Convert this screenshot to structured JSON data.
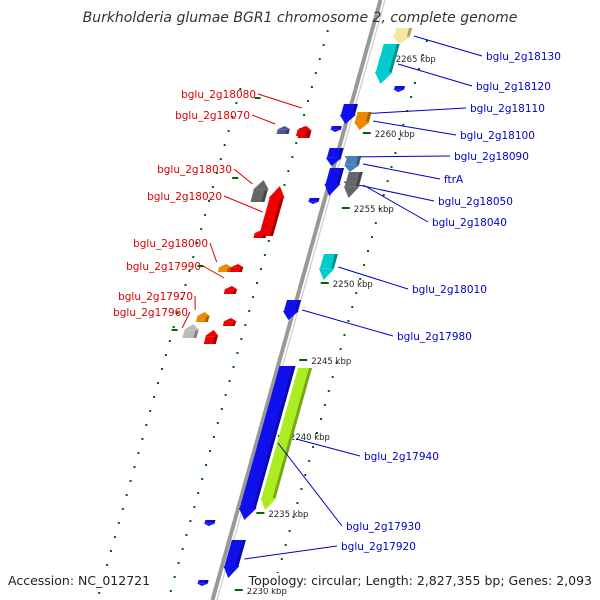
{
  "title": "Burkholderia glumae BGR1 chromosome 2, complete genome",
  "footer": {
    "accession": "Accession: NC_012721",
    "topology": "Topology: circular; Length: 2,827,355 bp; Genes: 2,093"
  },
  "colors": {
    "backbone": "#999999",
    "forward_label": "#0000cc",
    "reverse_label": "#dd0000",
    "tick_mark": "#006600",
    "blue": "#1010ee",
    "cyan": "#00cccc",
    "lime": "#aaee22",
    "orange": "#ee8800",
    "red": "#ee0000",
    "gray": "#666666",
    "steel": "#4a7fb5",
    "purple": "#555599",
    "lightgray": "#bbbbbb",
    "yellow": "#f5e79e"
  },
  "scale_ticks": [
    "2265 kbp",
    "2260 kbp",
    "2255 kbp",
    "2250 kbp",
    "2245 kbp",
    "2240 kbp",
    "2235 kbp",
    "2230 kbp"
  ],
  "forward_genes": [
    {
      "label": "bglu_2g18130",
      "color": "yellow"
    },
    {
      "label": "bglu_2g18120",
      "color": "cyan"
    },
    {
      "label": "bglu_2g18110",
      "color": "blue"
    },
    {
      "label": "bglu_2g18100",
      "color": "orange"
    },
    {
      "label": "bglu_2g18090",
      "color": "blue"
    },
    {
      "label": "ftrA",
      "color": "steel"
    },
    {
      "label": "bglu_2g18050",
      "color": "blue"
    },
    {
      "label": "bglu_2g18040",
      "color": "gray"
    },
    {
      "label": "bglu_2g18010",
      "color": "cyan"
    },
    {
      "label": "bglu_2g17980",
      "color": "blue"
    },
    {
      "label": "bglu_2g17940",
      "color": "lime"
    },
    {
      "label": "bglu_2g17930",
      "color": "blue"
    },
    {
      "label": "bglu_2g17920",
      "color": "blue"
    }
  ],
  "reverse_genes": [
    {
      "label": "bglu_2g18080",
      "color": "red"
    },
    {
      "label": "bglu_2g18070",
      "color": "purple"
    },
    {
      "label": "bglu_2g18030",
      "color": "gray"
    },
    {
      "label": "bglu_2g18020",
      "color": "red"
    },
    {
      "label": "bglu_2g18000",
      "color": "orange"
    },
    {
      "label": "bglu_2g17990",
      "color": "red"
    },
    {
      "label": "bglu_2g17970",
      "color": "orange"
    },
    {
      "label": "bglu_2g17960",
      "color": "lightgray"
    }
  ]
}
